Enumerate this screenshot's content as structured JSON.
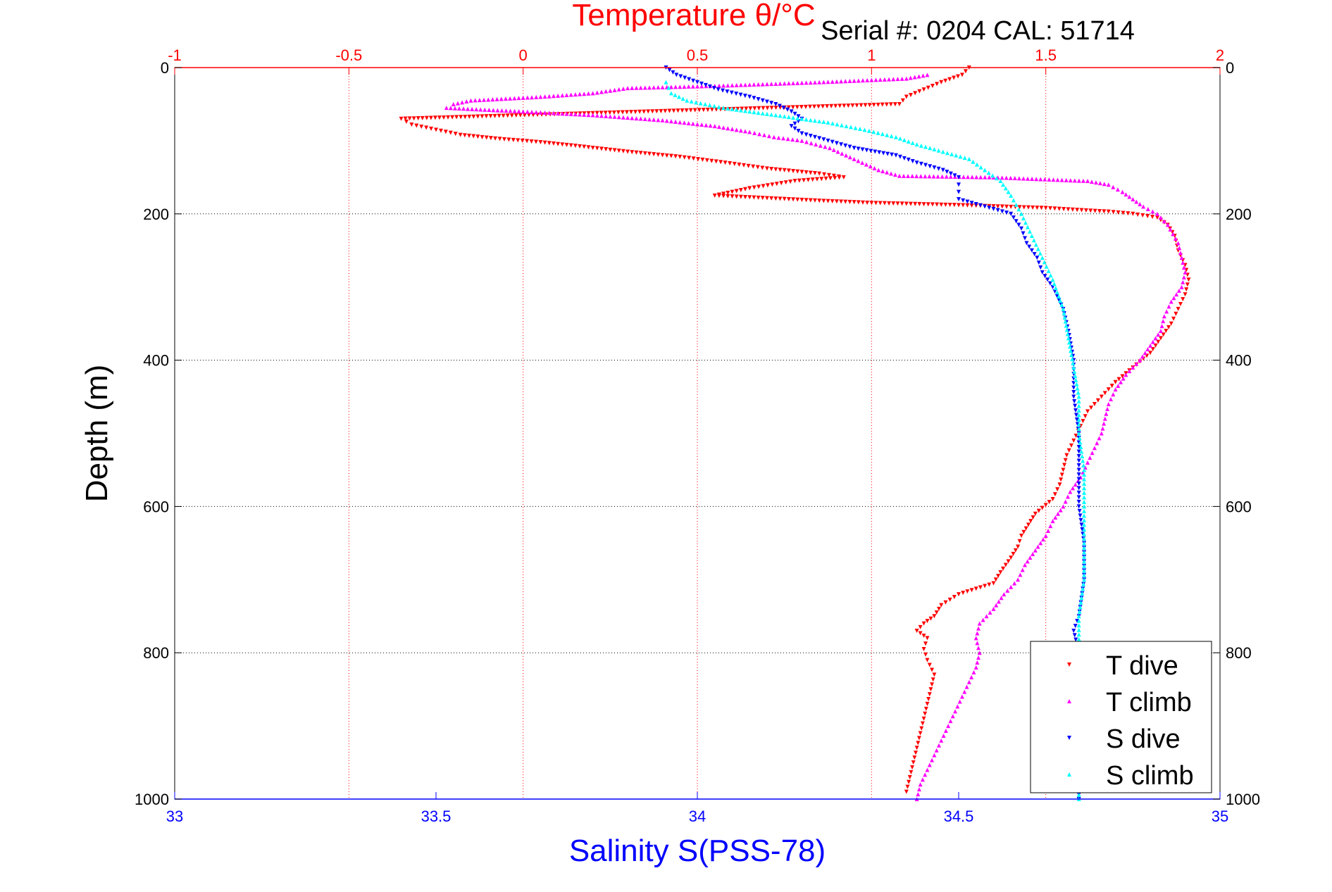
{
  "chart_data": {
    "type": "scatter",
    "title": "Temperature θ/°C",
    "subtitle": "Serial #: 0204   CAL: 51714",
    "ylabel": "Depth (m)",
    "xlabel": "Salinity S(PSS-78)",
    "ylim": [
      1000,
      0
    ],
    "yticks": [
      0,
      200,
      400,
      600,
      800,
      1000
    ],
    "ytick_labels": [
      "0",
      "200",
      "400",
      "600",
      "800",
      "1000"
    ],
    "temperature_axis": {
      "position": "top",
      "range": [
        -1,
        2
      ],
      "ticks": [
        -1,
        -0.5,
        0,
        0.5,
        1,
        1.5,
        2
      ],
      "tick_labels": [
        "-1",
        "-0.5",
        "0",
        "0.5",
        "1",
        "1.5",
        "2"
      ],
      "color": "#ff0000"
    },
    "salinity_axis": {
      "position": "bottom",
      "range": [
        33,
        35
      ],
      "ticks": [
        33,
        33.5,
        34,
        34.5,
        35
      ],
      "tick_labels": [
        "33",
        "33.5",
        "34",
        "34.5",
        "35"
      ],
      "color": "#0000ff"
    },
    "grid": true,
    "legend": {
      "placement": "bottom-right",
      "entries": [
        "T dive",
        "T climb",
        "S dive",
        "S climb"
      ]
    },
    "series": [
      {
        "name": "T dive",
        "axis": "temperature",
        "marker": "triangle-down",
        "color": "#ff0000",
        "points": [
          [
            1.28,
            0
          ],
          [
            1.26,
            10
          ],
          [
            1.2,
            20
          ],
          [
            1.15,
            30
          ],
          [
            1.1,
            40
          ],
          [
            1.08,
            50
          ],
          [
            -0.35,
            70
          ],
          [
            -0.32,
            78
          ],
          [
            -0.25,
            85
          ],
          [
            -0.18,
            92
          ],
          [
            -0.08,
            97
          ],
          [
            0.05,
            102
          ],
          [
            0.15,
            107
          ],
          [
            0.3,
            115
          ],
          [
            0.45,
            122
          ],
          [
            0.58,
            130
          ],
          [
            0.7,
            138
          ],
          [
            0.85,
            145
          ],
          [
            0.92,
            150
          ],
          [
            0.78,
            155
          ],
          [
            0.65,
            165
          ],
          [
            0.55,
            175
          ],
          [
            0.85,
            182
          ],
          [
            1.0,
            185
          ],
          [
            1.25,
            188
          ],
          [
            1.5,
            192
          ],
          [
            1.68,
            197
          ],
          [
            1.75,
            200
          ],
          [
            1.82,
            205
          ],
          [
            1.85,
            215
          ],
          [
            1.87,
            230
          ],
          [
            1.88,
            250
          ],
          [
            1.9,
            270
          ],
          [
            1.91,
            290
          ],
          [
            1.9,
            310
          ],
          [
            1.88,
            330
          ],
          [
            1.86,
            350
          ],
          [
            1.83,
            370
          ],
          [
            1.8,
            390
          ],
          [
            1.75,
            410
          ],
          [
            1.7,
            430
          ],
          [
            1.66,
            450
          ],
          [
            1.62,
            470
          ],
          [
            1.6,
            490
          ],
          [
            1.58,
            510
          ],
          [
            1.56,
            530
          ],
          [
            1.55,
            550
          ],
          [
            1.54,
            570
          ],
          [
            1.52,
            590
          ],
          [
            1.47,
            610
          ],
          [
            1.45,
            625
          ],
          [
            1.43,
            640
          ],
          [
            1.42,
            655
          ],
          [
            1.4,
            670
          ],
          [
            1.37,
            690
          ],
          [
            1.35,
            705
          ],
          [
            1.25,
            720
          ],
          [
            1.2,
            735
          ],
          [
            1.18,
            750
          ],
          [
            1.15,
            760
          ],
          [
            1.13,
            770
          ],
          [
            1.16,
            780
          ],
          [
            1.15,
            795
          ],
          [
            1.16,
            810
          ],
          [
            1.18,
            830
          ],
          [
            1.17,
            850
          ],
          [
            1.16,
            870
          ],
          [
            1.15,
            890
          ],
          [
            1.14,
            910
          ],
          [
            1.13,
            930
          ],
          [
            1.12,
            950
          ],
          [
            1.11,
            970
          ],
          [
            1.1,
            990
          ]
        ]
      },
      {
        "name": "T climb",
        "axis": "temperature",
        "marker": "triangle-up",
        "color": "#ff00ff",
        "points": [
          [
            1.16,
            10
          ],
          [
            1.1,
            15
          ],
          [
            0.85,
            20
          ],
          [
            0.55,
            25
          ],
          [
            0.3,
            28
          ],
          [
            0.2,
            35
          ],
          [
            0.05,
            40
          ],
          [
            -0.15,
            45
          ],
          [
            -0.2,
            50
          ],
          [
            -0.22,
            55
          ],
          [
            0.0,
            60
          ],
          [
            0.2,
            65
          ],
          [
            0.4,
            72
          ],
          [
            0.55,
            80
          ],
          [
            0.65,
            88
          ],
          [
            0.72,
            95
          ],
          [
            0.8,
            100
          ],
          [
            0.88,
            110
          ],
          [
            0.95,
            125
          ],
          [
            1.02,
            140
          ],
          [
            1.08,
            148
          ],
          [
            1.35,
            150
          ],
          [
            1.62,
            155
          ],
          [
            1.68,
            160
          ],
          [
            1.72,
            170
          ],
          [
            1.75,
            180
          ],
          [
            1.78,
            190
          ],
          [
            1.82,
            200
          ],
          [
            1.85,
            215
          ],
          [
            1.88,
            240
          ],
          [
            1.89,
            260
          ],
          [
            1.9,
            280
          ],
          [
            1.89,
            300
          ],
          [
            1.86,
            320
          ],
          [
            1.84,
            340
          ],
          [
            1.83,
            360
          ],
          [
            1.8,
            380
          ],
          [
            1.77,
            400
          ],
          [
            1.73,
            420
          ],
          [
            1.7,
            440
          ],
          [
            1.68,
            460
          ],
          [
            1.67,
            480
          ],
          [
            1.66,
            500
          ],
          [
            1.64,
            520
          ],
          [
            1.62,
            540
          ],
          [
            1.6,
            560
          ],
          [
            1.57,
            580
          ],
          [
            1.55,
            600
          ],
          [
            1.52,
            620
          ],
          [
            1.5,
            640
          ],
          [
            1.47,
            660
          ],
          [
            1.44,
            680
          ],
          [
            1.42,
            700
          ],
          [
            1.38,
            720
          ],
          [
            1.35,
            740
          ],
          [
            1.31,
            760
          ],
          [
            1.3,
            780
          ],
          [
            1.31,
            800
          ],
          [
            1.3,
            820
          ],
          [
            1.28,
            840
          ],
          [
            1.26,
            860
          ],
          [
            1.24,
            880
          ],
          [
            1.22,
            900
          ],
          [
            1.2,
            920
          ],
          [
            1.18,
            940
          ],
          [
            1.16,
            960
          ],
          [
            1.14,
            980
          ],
          [
            1.13,
            1000
          ]
        ]
      },
      {
        "name": "S dive",
        "axis": "salinity",
        "marker": "triangle-down",
        "color": "#0000ff",
        "points": [
          [
            33.94,
            0
          ],
          [
            33.96,
            10
          ],
          [
            34.0,
            20
          ],
          [
            34.04,
            30
          ],
          [
            34.1,
            40
          ],
          [
            34.15,
            50
          ],
          [
            34.18,
            60
          ],
          [
            34.2,
            70
          ],
          [
            34.18,
            80
          ],
          [
            34.2,
            90
          ],
          [
            34.25,
            100
          ],
          [
            34.3,
            110
          ],
          [
            34.38,
            120
          ],
          [
            34.42,
            130
          ],
          [
            34.47,
            140
          ],
          [
            34.5,
            150
          ],
          [
            34.5,
            160
          ],
          [
            34.5,
            170
          ],
          [
            34.5,
            180
          ],
          [
            34.55,
            190
          ],
          [
            34.6,
            200
          ],
          [
            34.62,
            220
          ],
          [
            34.63,
            240
          ],
          [
            34.65,
            260
          ],
          [
            34.66,
            280
          ],
          [
            34.68,
            300
          ],
          [
            34.7,
            330
          ],
          [
            34.71,
            360
          ],
          [
            34.72,
            400
          ],
          [
            34.72,
            450
          ],
          [
            34.73,
            500
          ],
          [
            34.73,
            550
          ],
          [
            34.73,
            600
          ],
          [
            34.74,
            650
          ],
          [
            34.74,
            700
          ],
          [
            34.73,
            750
          ],
          [
            34.72,
            770
          ],
          [
            34.73,
            800
          ],
          [
            34.73,
            850
          ],
          [
            34.73,
            900
          ],
          [
            34.73,
            950
          ],
          [
            34.73,
            1000
          ]
        ]
      },
      {
        "name": "S climb",
        "axis": "salinity",
        "marker": "triangle-up",
        "color": "#00ffff",
        "points": [
          [
            33.94,
            20
          ],
          [
            33.95,
            35
          ],
          [
            33.98,
            45
          ],
          [
            34.05,
            55
          ],
          [
            34.15,
            65
          ],
          [
            34.25,
            75
          ],
          [
            34.32,
            85
          ],
          [
            34.38,
            95
          ],
          [
            34.42,
            105
          ],
          [
            34.47,
            115
          ],
          [
            34.52,
            125
          ],
          [
            34.55,
            140
          ],
          [
            34.58,
            155
          ],
          [
            34.6,
            175
          ],
          [
            34.62,
            200
          ],
          [
            34.64,
            230
          ],
          [
            34.66,
            260
          ],
          [
            34.68,
            290
          ],
          [
            34.7,
            330
          ],
          [
            34.71,
            370
          ],
          [
            34.72,
            410
          ],
          [
            34.73,
            450
          ],
          [
            34.73,
            500
          ],
          [
            34.74,
            550
          ],
          [
            34.74,
            600
          ],
          [
            34.74,
            650
          ],
          [
            34.74,
            700
          ],
          [
            34.73,
            750
          ],
          [
            34.73,
            800
          ],
          [
            34.73,
            850
          ],
          [
            34.73,
            900
          ],
          [
            34.73,
            1000
          ]
        ]
      }
    ]
  }
}
